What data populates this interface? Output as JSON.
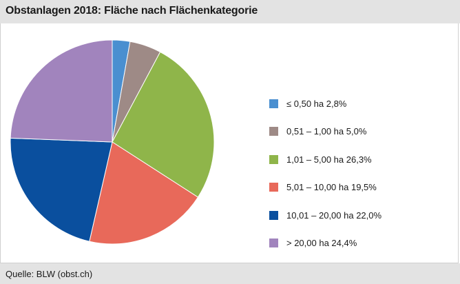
{
  "title": "Obstanlagen 2018: Fläche nach Flächenkategorie",
  "source": "Quelle: BLW (obst.ch)",
  "chart_data": {
    "type": "pie",
    "unit": "%",
    "slices": [
      {
        "label": "≤ 0,50 ha 2,8%",
        "value": 2.8,
        "color": "#4a8fd0"
      },
      {
        "label": "0,51 – 1,00 ha 5,0%",
        "value": 5.0,
        "color": "#9e8a86"
      },
      {
        "label": "1,01 – 5,00 ha 26,3%",
        "value": 26.3,
        "color": "#8fb54a"
      },
      {
        "label": "5,01 – 10,00 ha 19,5%",
        "value": 19.5,
        "color": "#e8695a"
      },
      {
        "label": "10,01 – 20,00 ha 22,0%",
        "value": 22.0,
        "color": "#0a4f9e"
      },
      {
        "label": "> 20,00 ha 24,4%",
        "value": 24.4,
        "color": "#a184bd"
      }
    ],
    "legend_position": "right"
  }
}
